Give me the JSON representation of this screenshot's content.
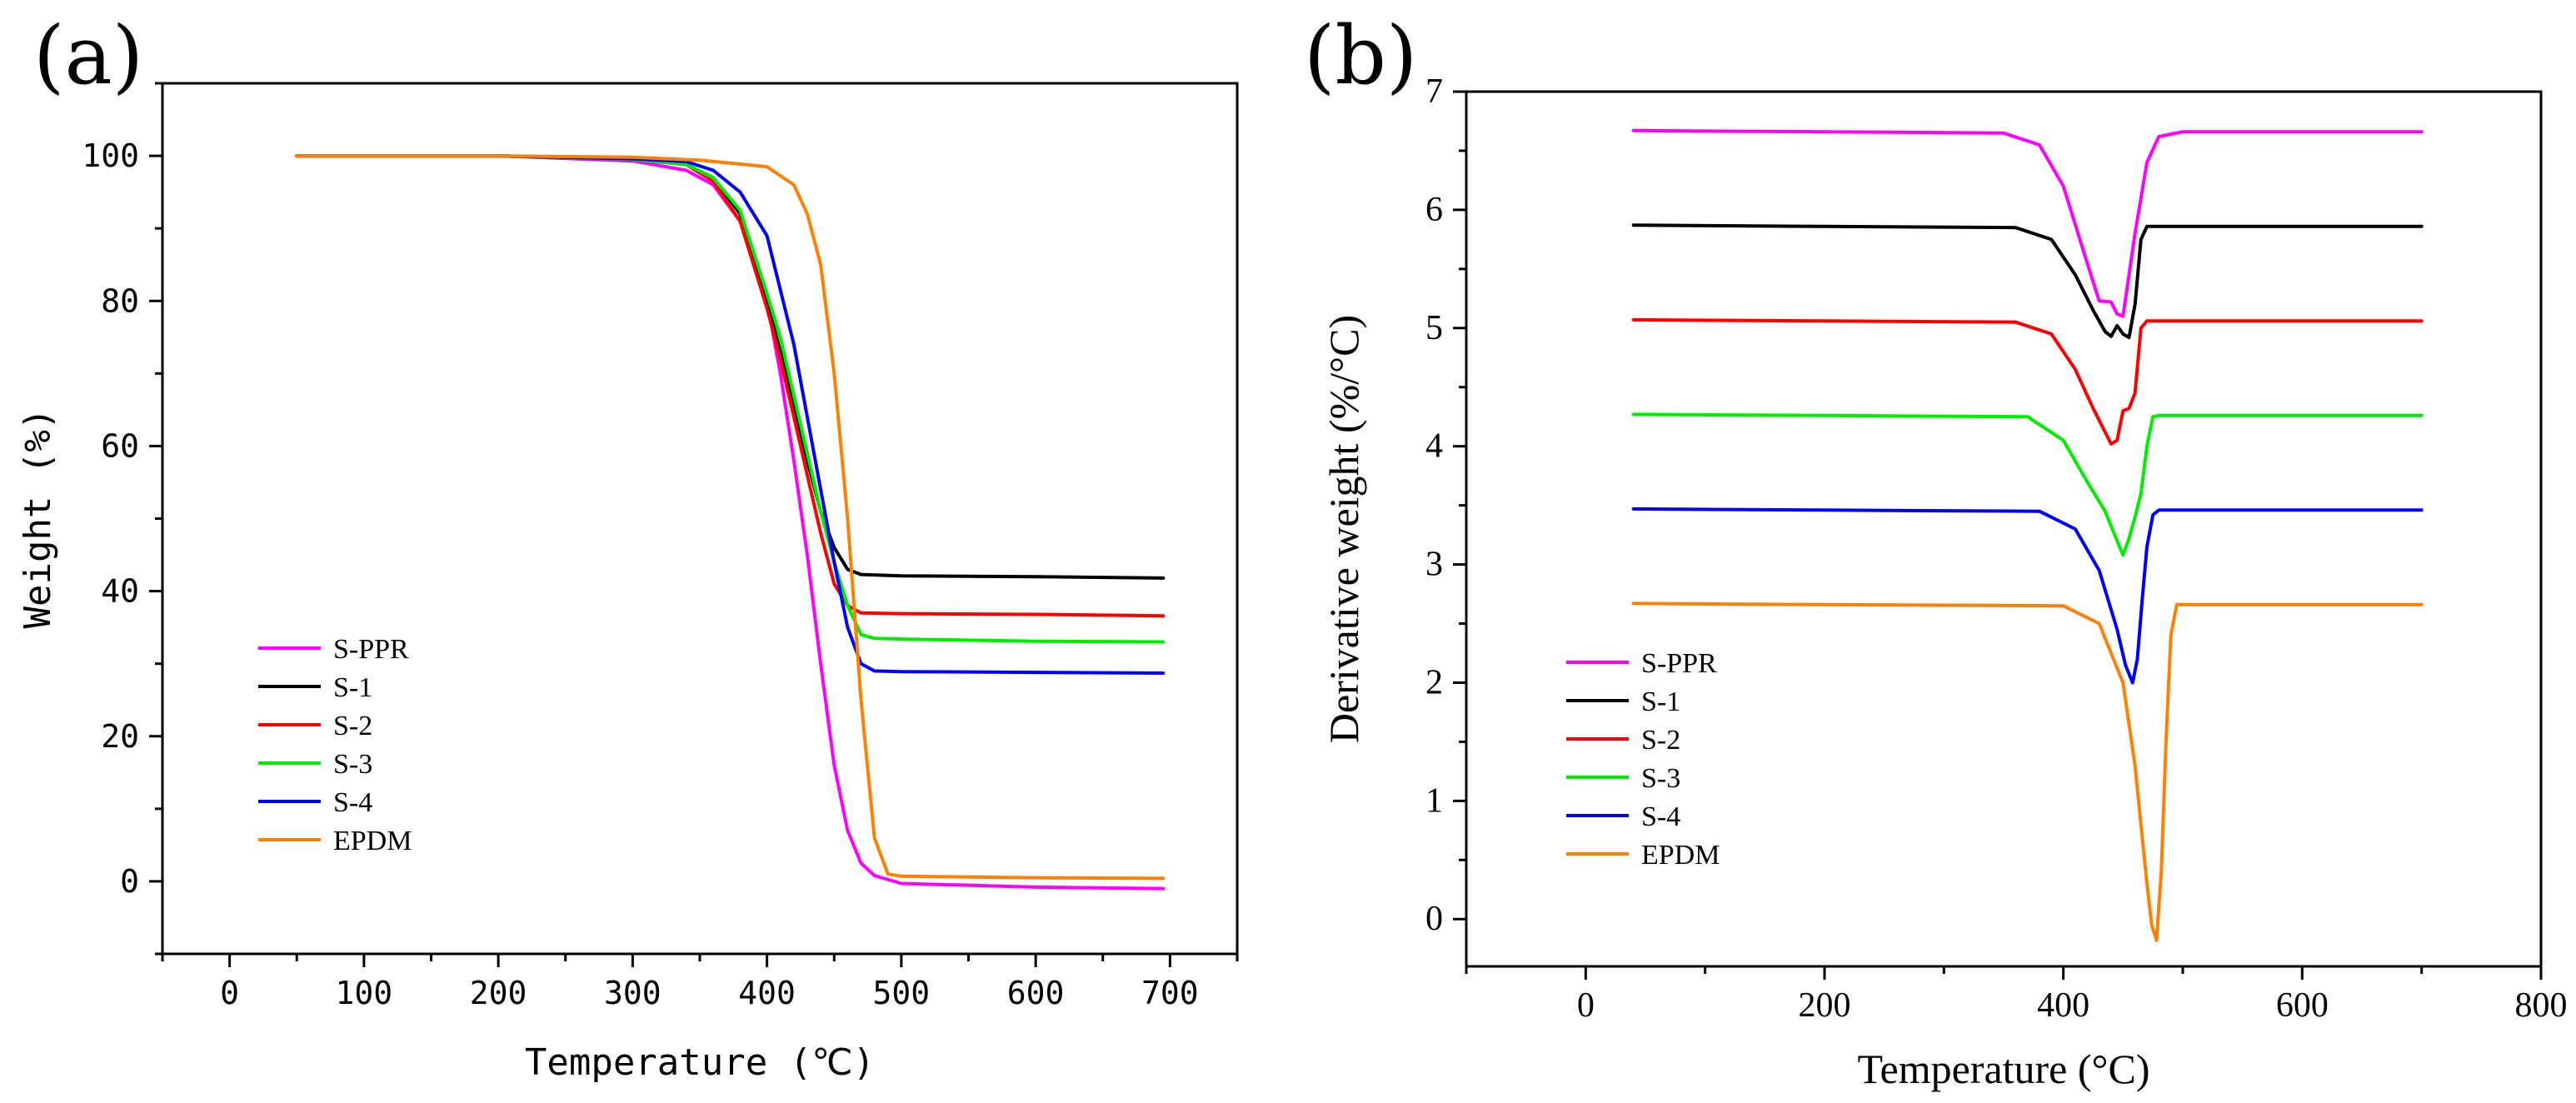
{
  "chart_data": [
    {
      "panel": "(a)",
      "type": "line",
      "title": "",
      "xlabel": "Temperature (℃)",
      "ylabel": "Weight (%)",
      "xlim": [
        -50,
        750
      ],
      "ylim": [
        -10,
        110
      ],
      "xticks": [
        0,
        100,
        200,
        300,
        400,
        500,
        600,
        700
      ],
      "yticks": [
        0,
        20,
        40,
        60,
        80,
        100
      ],
      "grid": false,
      "legend_position": "bottom-left",
      "series": [
        {
          "name": "S-PPR",
          "color": "#ff00ff",
          "x": [
            50,
            100,
            200,
            300,
            340,
            360,
            380,
            400,
            410,
            420,
            430,
            440,
            450,
            460,
            470,
            480,
            500,
            600,
            695
          ],
          "y": [
            100,
            100,
            100,
            99.3,
            98,
            96,
            91,
            80,
            70,
            58,
            45,
            30,
            16,
            7,
            2.5,
            0.8,
            -0.3,
            -0.8,
            -1
          ]
        },
        {
          "name": "S-1",
          "color": "#000000",
          "x": [
            50,
            100,
            200,
            300,
            340,
            360,
            380,
            400,
            410,
            420,
            430,
            440,
            450,
            460,
            470,
            500,
            600,
            695
          ],
          "y": [
            100,
            100,
            100,
            99.5,
            98.8,
            97,
            92,
            80,
            73,
            66,
            58,
            51,
            46,
            43,
            42.3,
            42.1,
            42,
            41.8
          ]
        },
        {
          "name": "S-2",
          "color": "#ff0000",
          "x": [
            50,
            100,
            200,
            300,
            340,
            360,
            380,
            400,
            410,
            420,
            430,
            440,
            450,
            460,
            470,
            500,
            600,
            695
          ],
          "y": [
            100,
            100,
            100,
            99.5,
            98.8,
            96.5,
            91,
            79,
            72,
            64,
            56,
            48,
            41,
            38,
            37,
            36.9,
            36.8,
            36.6
          ]
        },
        {
          "name": "S-3",
          "color": "#00ee00",
          "x": [
            50,
            100,
            200,
            300,
            340,
            360,
            380,
            400,
            410,
            420,
            430,
            440,
            450,
            460,
            470,
            480,
            500,
            600,
            695
          ],
          "y": [
            100,
            100,
            100,
            99.5,
            98.8,
            97,
            92.5,
            81,
            75,
            67,
            59,
            51,
            44,
            38,
            34,
            33.5,
            33.4,
            33.1,
            33
          ]
        },
        {
          "name": "S-4",
          "color": "#0000ff",
          "x": [
            50,
            100,
            200,
            300,
            340,
            360,
            380,
            400,
            420,
            430,
            440,
            450,
            460,
            470,
            480,
            500,
            600,
            695
          ],
          "y": [
            100,
            100,
            100,
            99.6,
            99.2,
            98,
            95,
            89,
            74,
            64,
            54,
            44,
            35,
            30,
            29,
            28.9,
            28.8,
            28.7
          ]
        },
        {
          "name": "EPDM",
          "color": "#ff8000",
          "x": [
            50,
            100,
            200,
            300,
            350,
            400,
            420,
            430,
            440,
            450,
            460,
            470,
            480,
            490,
            500,
            600,
            695
          ],
          "y": [
            100,
            100,
            100,
            99.8,
            99.4,
            98.5,
            96,
            92,
            85,
            70,
            50,
            25,
            6,
            1,
            0.7,
            0.5,
            0.4
          ]
        }
      ]
    },
    {
      "panel": "(b)",
      "type": "line",
      "title": "",
      "xlabel": "Temperature (°C)",
      "ylabel": "Derivative weight (%/°C)",
      "xlim": [
        -100,
        800
      ],
      "ylim": [
        -0.4,
        7
      ],
      "xticks": [
        0,
        200,
        400,
        600,
        800
      ],
      "yticks": [
        0,
        1,
        2,
        3,
        4,
        5,
        6,
        7
      ],
      "grid": false,
      "legend_position": "bottom-left",
      "series": [
        {
          "name": "S-PPR",
          "color": "#ff00ff",
          "x": [
            40,
            200,
            350,
            380,
            400,
            420,
            430,
            440,
            445,
            450,
            460,
            470,
            480,
            500,
            600,
            700
          ],
          "y": [
            6.67,
            6.66,
            6.65,
            6.55,
            6.2,
            5.55,
            5.23,
            5.22,
            5.12,
            5.1,
            5.8,
            6.4,
            6.62,
            6.66,
            6.66,
            6.66
          ]
        },
        {
          "name": "S-1",
          "color": "#000000",
          "x": [
            40,
            200,
            360,
            390,
            410,
            425,
            435,
            440,
            445,
            450,
            455,
            460,
            465,
            470,
            480,
            500,
            600,
            700
          ],
          "y": [
            5.87,
            5.86,
            5.85,
            5.75,
            5.45,
            5.15,
            4.97,
            4.93,
            5.02,
            4.95,
            4.92,
            5.2,
            5.75,
            5.86,
            5.86,
            5.86,
            5.86,
            5.86
          ]
        },
        {
          "name": "S-2",
          "color": "#ff0000",
          "x": [
            40,
            200,
            360,
            390,
            410,
            425,
            435,
            440,
            445,
            450,
            455,
            460,
            465,
            470,
            500,
            600,
            700
          ],
          "y": [
            5.07,
            5.06,
            5.05,
            4.95,
            4.65,
            4.32,
            4.12,
            4.02,
            4.05,
            4.3,
            4.32,
            4.45,
            5.0,
            5.06,
            5.06,
            5.06,
            5.06
          ]
        },
        {
          "name": "S-3",
          "color": "#00ee00",
          "x": [
            40,
            200,
            370,
            400,
            420,
            435,
            445,
            450,
            455,
            460,
            465,
            470,
            475,
            480,
            500,
            600,
            700
          ],
          "y": [
            4.27,
            4.26,
            4.25,
            4.05,
            3.7,
            3.45,
            3.2,
            3.08,
            3.22,
            3.4,
            3.6,
            4.0,
            4.25,
            4.26,
            4.26,
            4.26,
            4.26
          ]
        },
        {
          "name": "S-4",
          "color": "#0000ff",
          "x": [
            40,
            200,
            380,
            410,
            430,
            445,
            452,
            458,
            462,
            466,
            470,
            475,
            480,
            500,
            600,
            700
          ],
          "y": [
            3.47,
            3.46,
            3.45,
            3.3,
            2.95,
            2.45,
            2.15,
            2.0,
            2.2,
            2.7,
            3.15,
            3.42,
            3.46,
            3.46,
            3.46,
            3.46
          ]
        },
        {
          "name": "EPDM",
          "color": "#ff8000",
          "x": [
            40,
            200,
            400,
            430,
            450,
            460,
            465,
            470,
            474,
            478,
            482,
            486,
            490,
            495,
            500,
            600,
            700
          ],
          "y": [
            2.67,
            2.66,
            2.65,
            2.5,
            2.0,
            1.3,
            0.8,
            0.3,
            -0.05,
            -0.18,
            0.4,
            1.5,
            2.4,
            2.66,
            2.66,
            2.66,
            2.66
          ]
        }
      ]
    }
  ]
}
